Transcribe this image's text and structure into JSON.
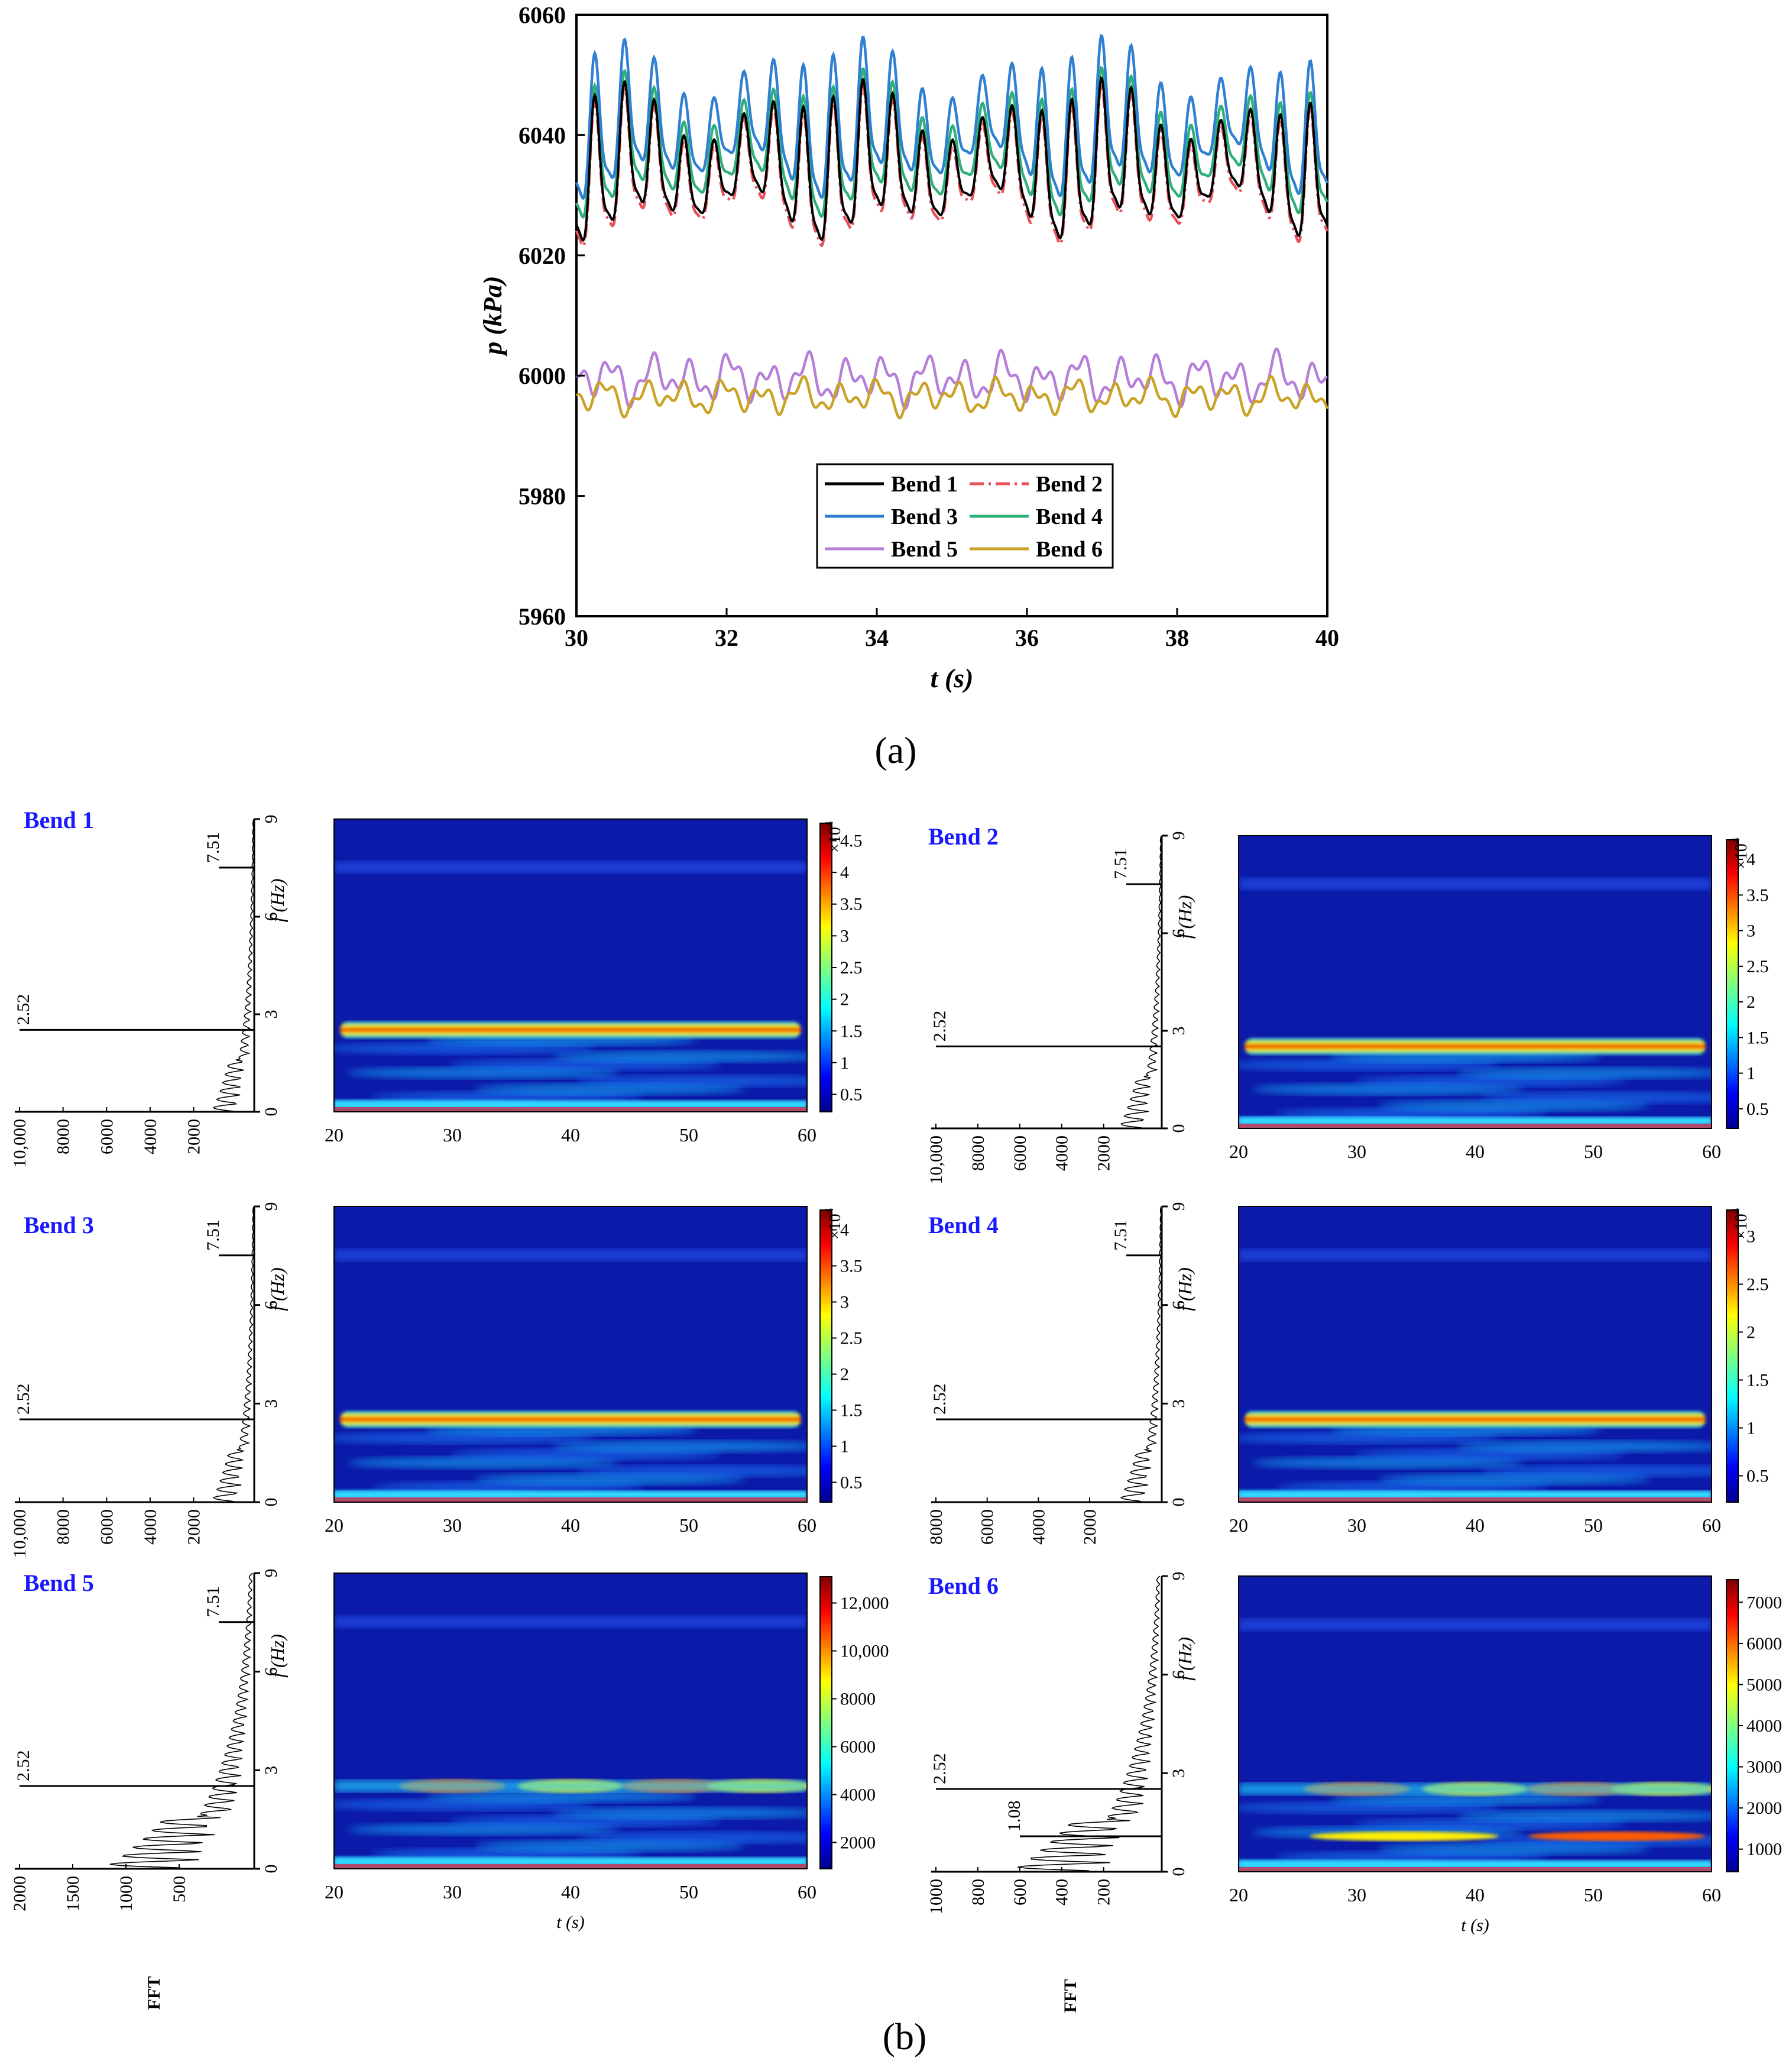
{
  "figure": {
    "label_a": "(a)",
    "label_b": "(b)"
  },
  "chart_data": [
    {
      "type": "line",
      "title": "",
      "xlabel": "t (s)",
      "ylabel": "p (kPa)",
      "xlim": [
        30,
        40
      ],
      "ylim": [
        5960,
        6060
      ],
      "xticks": [
        30,
        32,
        34,
        36,
        38,
        40
      ],
      "yticks": [
        5960,
        5980,
        6000,
        6020,
        6040,
        6060
      ],
      "grid": false,
      "legend_position": "bottom-center",
      "oscillation_period_s": 0.397,
      "series": [
        {
          "name": "Bend 1",
          "color": "#000000",
          "style": "solid",
          "mean": 6034,
          "amplitude": 10.5
        },
        {
          "name": "Bend 2",
          "color": "#e8515a",
          "style": "dash-dot",
          "mean": 6033,
          "amplitude": 10.5
        },
        {
          "name": "Bend 3",
          "color": "#2f7fd2",
          "style": "solid",
          "mean": 6041,
          "amplitude": 10.5
        },
        {
          "name": "Bend 4",
          "color": "#2fb07a",
          "style": "solid",
          "mean": 6037,
          "amplitude": 9.5
        },
        {
          "name": "Bend 5",
          "color": "#b57fd9",
          "style": "solid",
          "mean": 5999.5,
          "amplitude": 2.5
        },
        {
          "name": "Bend 6",
          "color": "#c9a227",
          "style": "solid",
          "mean": 5996.5,
          "amplitude": 1.8
        }
      ]
    },
    {
      "type": "heatmap",
      "description_label": "",
      "xlabel": "t (s)",
      "ylabel": "f (Hz)",
      "fft_label": "FFT",
      "xlim": [
        20,
        60
      ],
      "xticks": [
        20,
        30,
        40,
        50,
        60
      ],
      "ylim": [
        0,
        9
      ],
      "yticks": [
        0,
        3,
        6,
        9
      ],
      "panels": [
        {
          "name": "Bend 1",
          "fft_ticks": [
            "10,000",
            "8000",
            "6000",
            "4000",
            "2000"
          ],
          "fft_peaks": [
            "2.52",
            "7.51"
          ],
          "colorbar_ticks": [
            "0.5",
            "1",
            "1.5",
            "2",
            "2.5",
            "3",
            "3.5",
            "4",
            "4.5"
          ],
          "colorbar_exp": "×10",
          "colorbar_exp_sup": "4",
          "band_freq": 2.52
        },
        {
          "name": "Bend 2",
          "fft_ticks": [
            "10,000",
            "8000",
            "6000",
            "4000",
            "2000"
          ],
          "fft_peaks": [
            "2.52",
            "7.51"
          ],
          "colorbar_ticks": [
            "0.5",
            "1",
            "1.5",
            "2",
            "2.5",
            "3",
            "3.5",
            "4"
          ],
          "colorbar_exp": "×10",
          "colorbar_exp_sup": "4",
          "band_freq": 2.52
        },
        {
          "name": "Bend 3",
          "fft_ticks": [
            "10,000",
            "8000",
            "6000",
            "4000",
            "2000"
          ],
          "fft_peaks": [
            "2.52",
            "7.51"
          ],
          "colorbar_ticks": [
            "0.5",
            "1",
            "1.5",
            "2",
            "2.5",
            "3",
            "3.5",
            "4"
          ],
          "colorbar_exp": "×10",
          "colorbar_exp_sup": "4",
          "band_freq": 2.52
        },
        {
          "name": "Bend 4",
          "fft_ticks": [
            "8000",
            "6000",
            "4000",
            "2000"
          ],
          "fft_peaks": [
            "2.52",
            "7.51"
          ],
          "colorbar_ticks": [
            "0.5",
            "1",
            "1.5",
            "2",
            "2.5",
            "3"
          ],
          "colorbar_exp": "×10",
          "colorbar_exp_sup": "4",
          "band_freq": 2.52
        },
        {
          "name": "Bend 5",
          "fft_ticks": [
            "2000",
            "1500",
            "1000",
            "500"
          ],
          "fft_peaks": [
            "2.52",
            "7.51"
          ],
          "colorbar_ticks": [
            "2000",
            "4000",
            "6000",
            "8000",
            "10,000",
            "12,000"
          ],
          "colorbar_exp": "",
          "colorbar_exp_sup": "",
          "band_freq": 2.52
        },
        {
          "name": "Bend 6",
          "fft_ticks": [
            "1000",
            "800",
            "600",
            "400",
            "200"
          ],
          "fft_peaks": [
            "2.52",
            "1.08"
          ],
          "colorbar_ticks": [
            "1000",
            "2000",
            "3000",
            "4000",
            "5000",
            "6000",
            "7000"
          ],
          "colorbar_exp": "",
          "colorbar_exp_sup": "",
          "band_freq": 2.52
        }
      ]
    }
  ]
}
